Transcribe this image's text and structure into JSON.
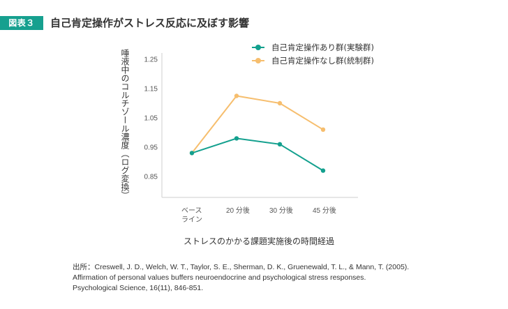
{
  "header": {
    "badge": "図表３",
    "title": "自己肯定操作がストレス反応に及ぼす影響"
  },
  "colors": {
    "accent": "#16a08f",
    "series_teal": "#13a08e",
    "series_orange": "#f6be6e",
    "axis": "#cccccc"
  },
  "chart_data": {
    "type": "line",
    "title": "自己肯定操作がストレス反応に及ぼす影響",
    "xlabel": "ストレスのかかる課題実施後の時間経過",
    "ylabel": "唾液中のコルチゾール濃度（ログ変換）",
    "categories": [
      "ベース\nライン",
      "20 分後",
      "30 分後",
      "45 分後"
    ],
    "category_labels": [
      {
        "line1": "ベース",
        "line2": "ライン"
      },
      {
        "line1": "20 分後",
        "line2": ""
      },
      {
        "line1": "30 分後",
        "line2": ""
      },
      {
        "line1": "45 分後",
        "line2": ""
      }
    ],
    "yticks": [
      "1.25",
      "1.15",
      "1.05",
      "0.95",
      "0.85"
    ],
    "ytick_values": [
      1.25,
      1.15,
      1.05,
      0.95,
      0.85
    ],
    "ylim": [
      0.78,
      1.25
    ],
    "grid": false,
    "legend_position": "top-right",
    "series": [
      {
        "name": "自己肯定操作あり群(実験群)",
        "color": "#13a08e",
        "values": [
          0.93,
          0.98,
          0.96,
          0.87
        ]
      },
      {
        "name": "自己肯定操作なし群(統制群)",
        "color": "#f6be6e",
        "values": [
          0.93,
          1.125,
          1.1,
          1.01
        ]
      }
    ]
  },
  "source": {
    "line1": "出所：Creswell, J. D., Welch, W. T., Taylor, S. E., Sherman, D. K., Gruenewald, T. L., & Mann, T. (2005).",
    "line2": "Affirmation of personal values buffers neuroendocrine and psychological stress responses.",
    "line3": "Psychological Science, 16(11), 846-851."
  }
}
